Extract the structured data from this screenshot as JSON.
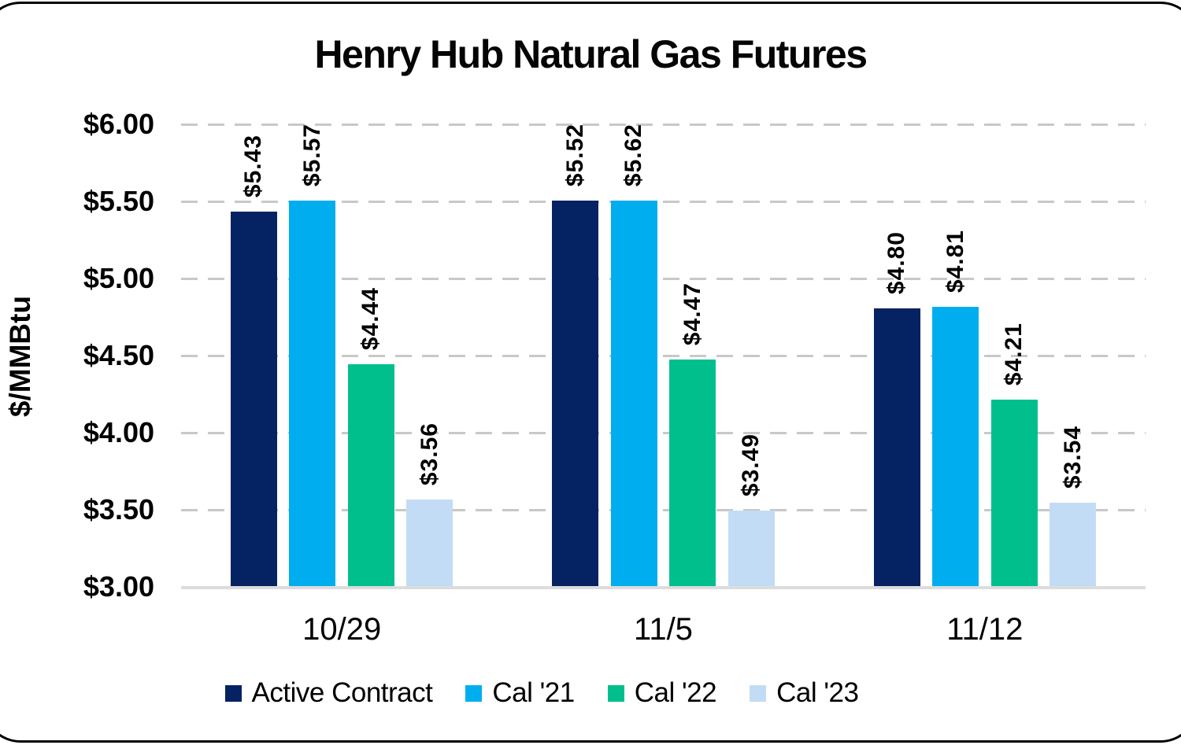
{
  "title": "Henry Hub Natural Gas Futures",
  "chart_data": {
    "type": "bar",
    "title": "Henry Hub Natural Gas Futures",
    "ylabel": "$/MMBtu",
    "xlabel": "",
    "ylim": [
      3.0,
      6.0
    ],
    "ytick_step": 0.5,
    "grid": "horizontal-dashed",
    "legend_position": "bottom",
    "gridline_color": "#c8c8c8",
    "axis_line_color": "#dcdcdc",
    "yticks": [
      {
        "value": 6.0,
        "label": "$6.00"
      },
      {
        "value": 5.5,
        "label": "$5.50"
      },
      {
        "value": 5.0,
        "label": "$5.00"
      },
      {
        "value": 4.5,
        "label": "$4.50"
      },
      {
        "value": 4.0,
        "label": "$4.00"
      },
      {
        "value": 3.5,
        "label": "$3.50"
      },
      {
        "value": 3.0,
        "label": "$3.00"
      }
    ],
    "categories": [
      "10/29",
      "11/5",
      "11/12"
    ],
    "series": [
      {
        "name": "Active Contract",
        "color": "#052262",
        "values": [
          5.43,
          5.52,
          4.8
        ],
        "labels": [
          "$5.43",
          "$5.52",
          "$4.80"
        ]
      },
      {
        "name": "Cal '21",
        "color": "#00aeef",
        "values": [
          5.57,
          5.62,
          4.81
        ],
        "labels": [
          "$5.57",
          "$5.62",
          "$4.81"
        ]
      },
      {
        "name": "Cal '22",
        "color": "#00bf8d",
        "values": [
          4.44,
          4.47,
          4.21
        ],
        "labels": [
          "$4.44",
          "$4.47",
          "$4.21"
        ]
      },
      {
        "name": "Cal '23",
        "color": "#c3dcf5",
        "values": [
          3.56,
          3.49,
          3.54
        ],
        "labels": [
          "$3.56",
          "$3.49",
          "$3.54"
        ]
      }
    ]
  }
}
